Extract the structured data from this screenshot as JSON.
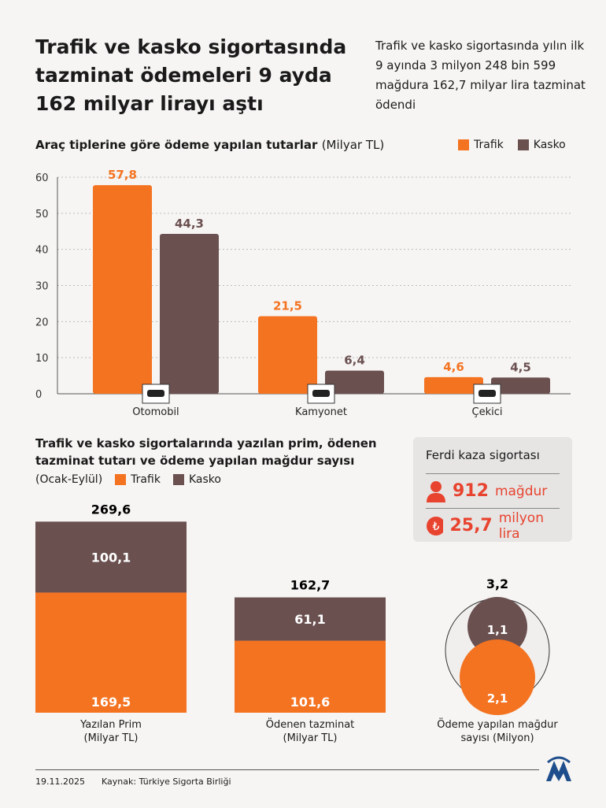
{
  "header": {
    "title": "Trafik ve kasko sigortasında tazminat ödemeleri 9 ayda 162 milyar lirayı aştı",
    "subtitle": "Trafik ve kasko sigortasında yılın ilk 9 ayında 3 milyon 248 bin 599 mağdura 162,7 milyar lira tazminat ödendi"
  },
  "colors": {
    "trafik": "#f47321",
    "kasko": "#6b5050",
    "accent": "#e8432e"
  },
  "chart_data": [
    {
      "type": "bar",
      "title": "Araç tiplerine göre ödeme yapılan tutarlar",
      "unit": "(Milyar TL)",
      "categories": [
        "Otomobil",
        "Kamyonet",
        "Çekici"
      ],
      "icons": [
        "car-icon",
        "truck-icon",
        "tow-truck-icon"
      ],
      "series": [
        {
          "name": "Trafik",
          "values": [
            57.8,
            21.5,
            4.6
          ],
          "labels": [
            "57,8",
            "21,5",
            "4,6"
          ]
        },
        {
          "name": "Kasko",
          "values": [
            44.3,
            6.4,
            4.5
          ],
          "labels": [
            "44,3",
            "6,4",
            "4,5"
          ]
        }
      ],
      "ylim": [
        0,
        60
      ],
      "yticks": [
        "0",
        "10",
        "20",
        "30",
        "40",
        "50",
        "60"
      ],
      "grid": true,
      "legend": "top-right"
    },
    {
      "type": "stacked-bar",
      "title": "Trafik ve kasko sigortalarında yazılan prim, ödenen tazminat tutarı ve ödeme yapılan mağdur sayısı",
      "period": "(Ocak-Eylül)",
      "legend": [
        "Trafik",
        "Kasko"
      ],
      "items": [
        {
          "caption": "Yazılan Prim",
          "unit": "(Milyar TL)",
          "total": 269.6,
          "total_label": "269,6",
          "trafik": 169.5,
          "trafik_label": "169,5",
          "kasko": 100.1,
          "kasko_label": "100,1"
        },
        {
          "caption": "Ödenen tazminat",
          "unit": "(Milyar TL)",
          "total": 162.7,
          "total_label": "162,7",
          "trafik": 101.6,
          "trafik_label": "101,6",
          "kasko": 61.1,
          "kasko_label": "61,1"
        },
        {
          "caption": "Ödeme yapılan mağdur",
          "unit": "sayısı (Milyon)",
          "total": 3.2,
          "total_label": "3,2",
          "trafik": 2.1,
          "trafik_label": "2,1",
          "kasko": 1.1,
          "kasko_label": "1,1"
        }
      ]
    }
  ],
  "ferdi": {
    "title": "Ferdi kaza sigortası",
    "victims": "912",
    "victims_unit": "mağdur",
    "amount": "25,7",
    "amount_unit": "milyon lira"
  },
  "footer": {
    "date": "19.11.2025",
    "source": "Kaynak: Türkiye Sigorta Birliği"
  }
}
